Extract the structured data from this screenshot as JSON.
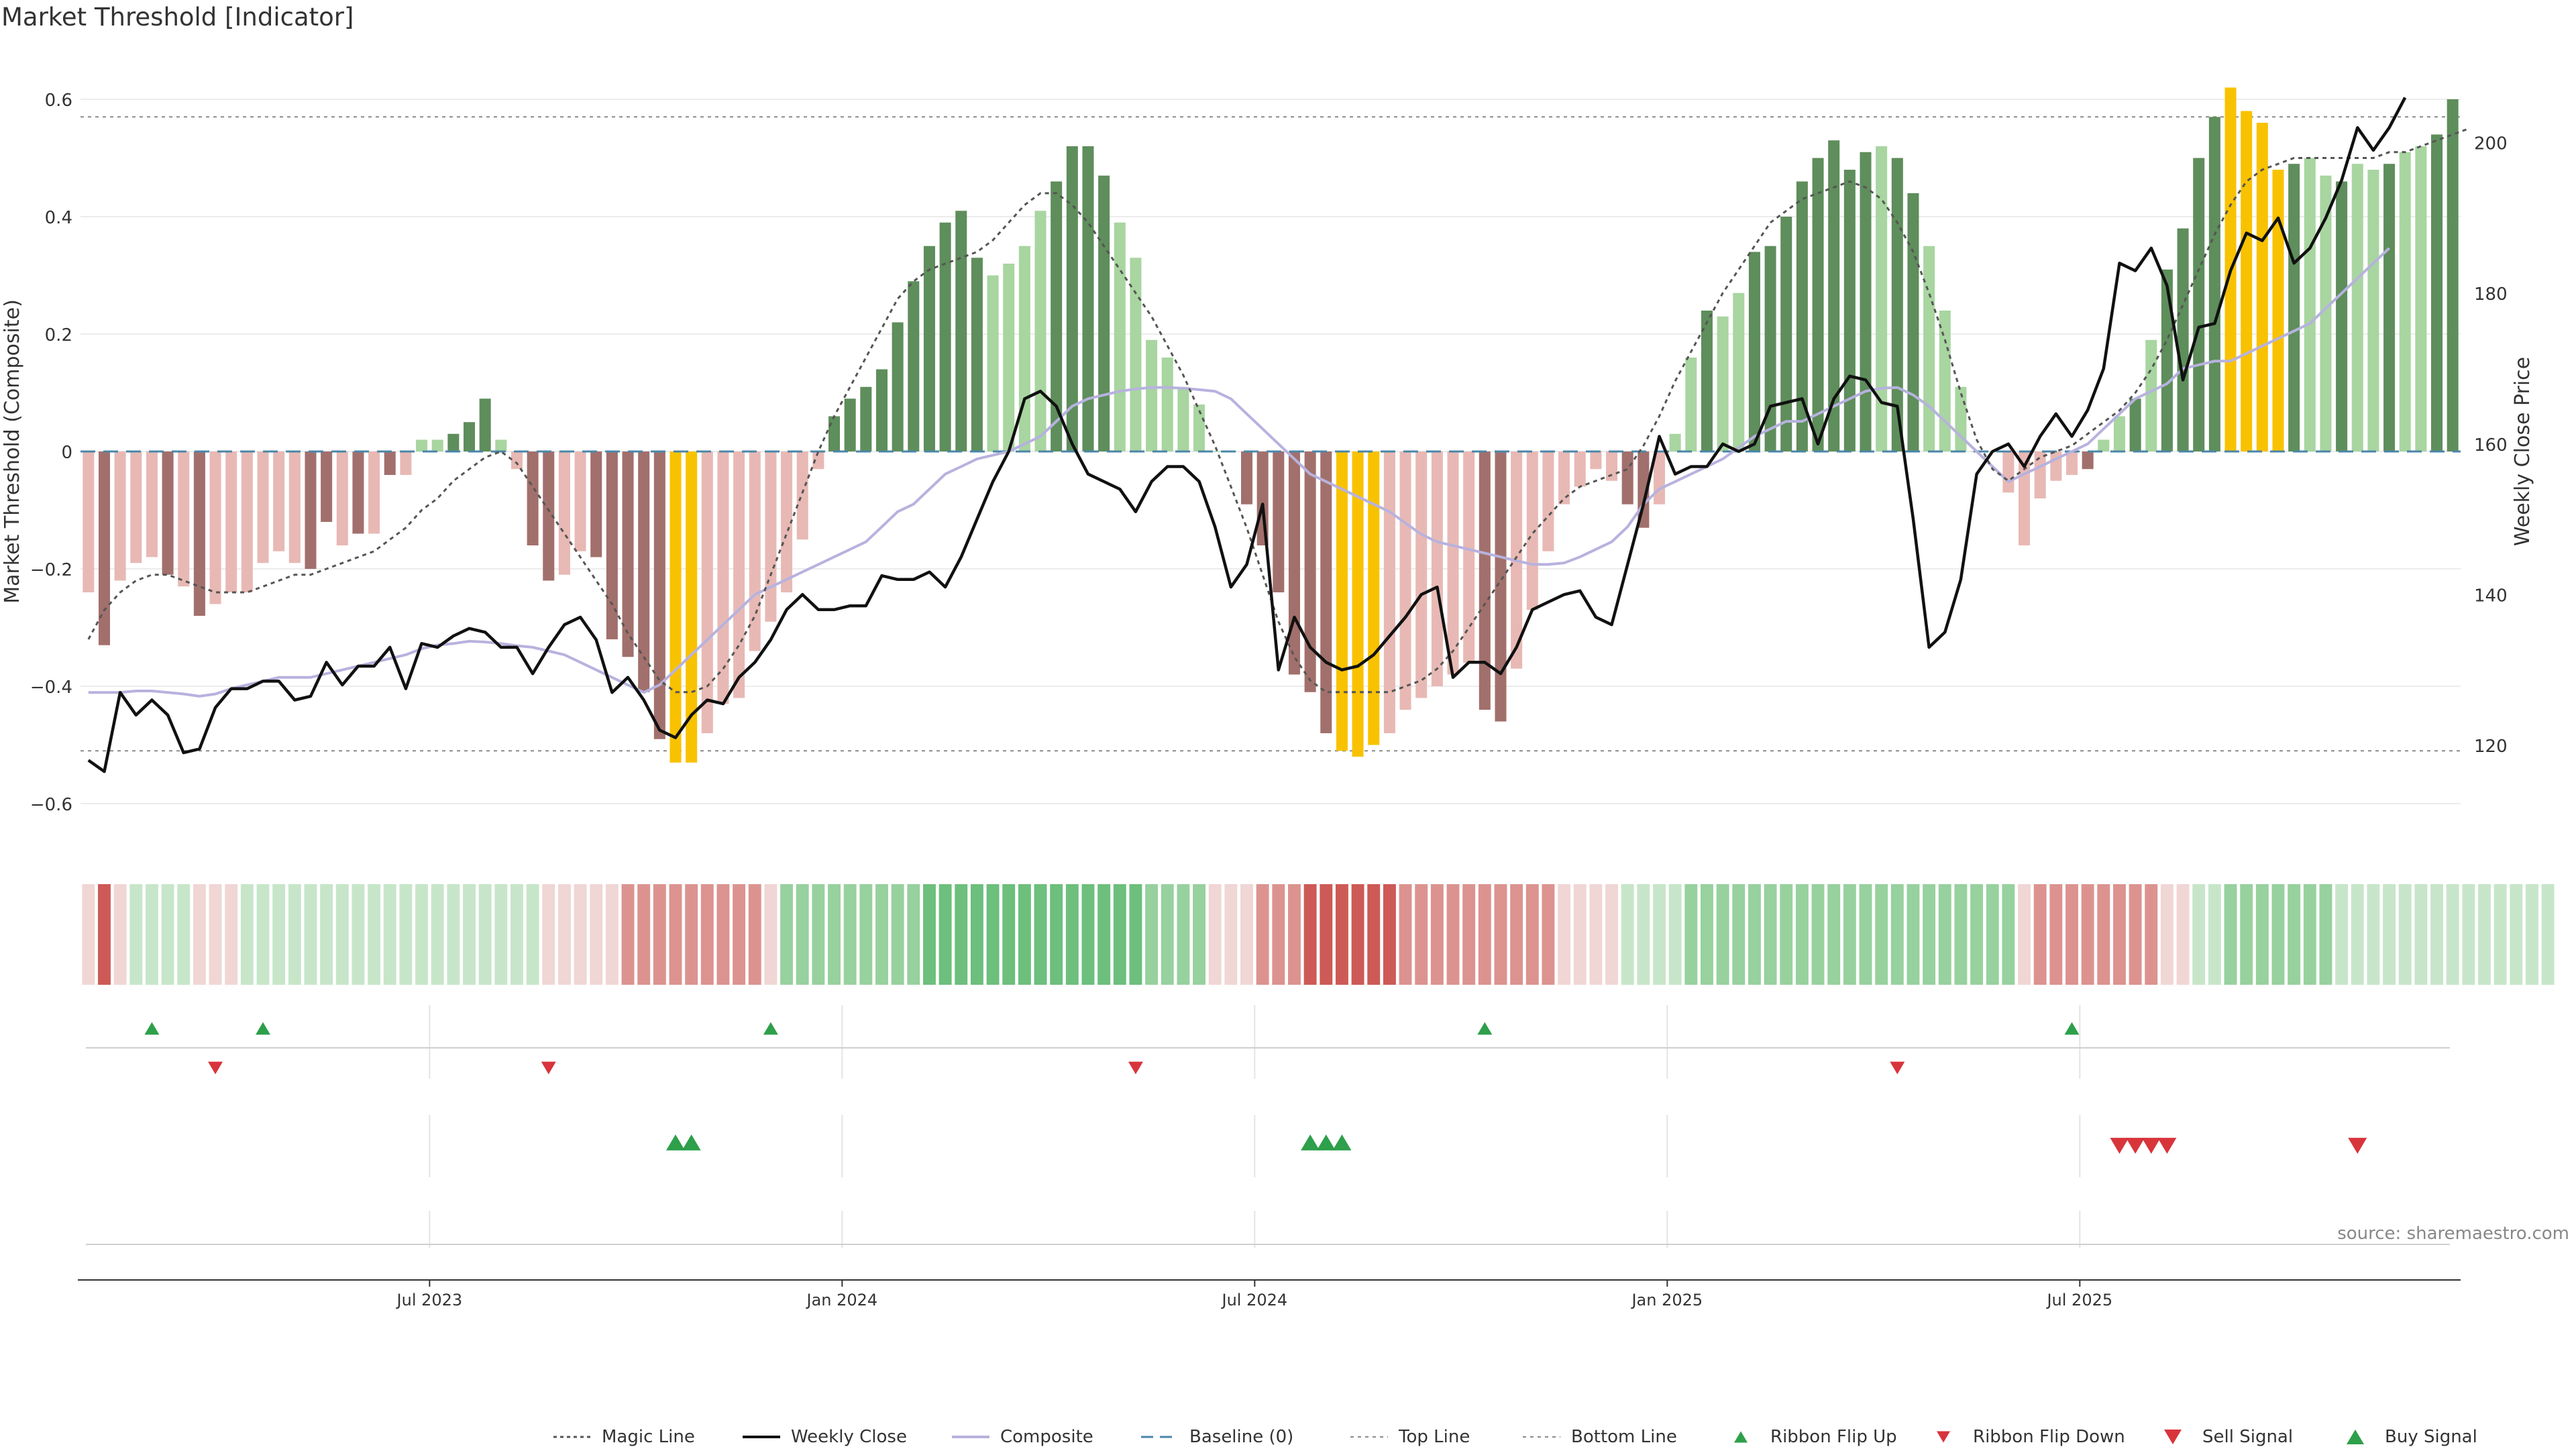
{
  "title": "Market Threshold [Indicator]",
  "source": "source: sharemaestro.com",
  "chart_data": {
    "type": "bar",
    "title": "Market Threshold [Indicator]",
    "ylabel_left": "Market Threshold (Composite)",
    "ylabel_right": "Weekly Close Price",
    "ylim_left": [
      -0.68,
      0.68
    ],
    "ylim_right": [
      106,
      212
    ],
    "left_ticks": [
      "0.6",
      "0.4",
      "0.2",
      "0",
      "−0.2",
      "−0.4",
      "−0.6"
    ],
    "left_tick_values": [
      0.6,
      0.4,
      0.2,
      0,
      -0.2,
      -0.4,
      -0.6
    ],
    "right_ticks": [
      "200",
      "180",
      "160",
      "140",
      "120"
    ],
    "right_tick_values": [
      200,
      180,
      160,
      140,
      120
    ],
    "x_labels": [
      "Jul 2023",
      "Jan 2024",
      "Jul 2024",
      "Jan 2025",
      "Jul 2025"
    ],
    "x_label_weeks": [
      22,
      48,
      74,
      100,
      126
    ],
    "top_line": 0.57,
    "bottom_line": -0.51,
    "composite": [
      -0.24,
      -0.33,
      -0.22,
      -0.19,
      -0.18,
      -0.21,
      -0.23,
      -0.28,
      -0.26,
      -0.24,
      -0.24,
      -0.19,
      -0.17,
      -0.19,
      -0.2,
      -0.12,
      -0.16,
      -0.14,
      -0.14,
      -0.04,
      -0.04,
      0.02,
      0.02,
      0.03,
      0.05,
      0.09,
      0.02,
      -0.03,
      -0.16,
      -0.22,
      -0.21,
      -0.17,
      -0.18,
      -0.32,
      -0.35,
      -0.41,
      -0.49,
      -0.53,
      -0.53,
      -0.48,
      -0.43,
      -0.42,
      -0.34,
      -0.29,
      -0.24,
      -0.15,
      -0.03,
      0.06,
      0.09,
      0.11,
      0.14,
      0.22,
      0.29,
      0.35,
      0.39,
      0.41,
      0.33,
      0.3,
      0.32,
      0.35,
      0.41,
      0.46,
      0.52,
      0.52,
      0.47,
      0.39,
      0.33,
      0.19,
      0.16,
      0.11,
      0.08,
      0.0,
      0.0,
      -0.09,
      -0.16,
      -0.24,
      -0.38,
      -0.41,
      -0.48,
      -0.51,
      -0.52,
      -0.5,
      -0.48,
      -0.44,
      -0.42,
      -0.4,
      -0.38,
      -0.36,
      -0.44,
      -0.46,
      -0.37,
      -0.27,
      -0.17,
      -0.09,
      -0.06,
      -0.03,
      -0.05,
      -0.09,
      -0.13,
      -0.09,
      0.03,
      0.16,
      0.24,
      0.23,
      0.27,
      0.34,
      0.35,
      0.4,
      0.46,
      0.5,
      0.53,
      0.48,
      0.51,
      0.52,
      0.5,
      0.44,
      0.35,
      0.24,
      0.11,
      0.0,
      0.0,
      -0.07,
      -0.16,
      -0.08,
      -0.05,
      -0.04,
      -0.03,
      0.02,
      0.06,
      0.09,
      0.19,
      0.31,
      0.38,
      0.5,
      0.57,
      0.62,
      0.58,
      0.56,
      0.48,
      0.49,
      0.5,
      0.47,
      0.46,
      0.49,
      0.48,
      0.49,
      0.51,
      0.52,
      0.54,
      0.6
    ],
    "magic_line": [
      -0.32,
      -0.27,
      -0.24,
      -0.22,
      -0.21,
      -0.21,
      -0.22,
      -0.23,
      -0.24,
      -0.24,
      -0.24,
      -0.23,
      -0.22,
      -0.21,
      -0.21,
      -0.2,
      -0.19,
      -0.18,
      -0.17,
      -0.15,
      -0.13,
      -0.1,
      -0.08,
      -0.05,
      -0.03,
      -0.01,
      0.0,
      -0.02,
      -0.06,
      -0.1,
      -0.14,
      -0.18,
      -0.22,
      -0.26,
      -0.31,
      -0.35,
      -0.39,
      -0.41,
      -0.41,
      -0.4,
      -0.37,
      -0.33,
      -0.28,
      -0.21,
      -0.14,
      -0.07,
      0.0,
      0.06,
      0.11,
      0.16,
      0.21,
      0.26,
      0.29,
      0.31,
      0.32,
      0.33,
      0.34,
      0.36,
      0.39,
      0.42,
      0.44,
      0.44,
      0.42,
      0.39,
      0.35,
      0.31,
      0.27,
      0.23,
      0.18,
      0.13,
      0.07,
      0.01,
      -0.06,
      -0.13,
      -0.21,
      -0.29,
      -0.35,
      -0.39,
      -0.41,
      -0.41,
      -0.41,
      -0.41,
      -0.41,
      -0.4,
      -0.39,
      -0.37,
      -0.34,
      -0.3,
      -0.26,
      -0.22,
      -0.18,
      -0.14,
      -0.11,
      -0.08,
      -0.06,
      -0.05,
      -0.04,
      -0.03,
      0.01,
      0.06,
      0.12,
      0.17,
      0.22,
      0.27,
      0.31,
      0.35,
      0.39,
      0.41,
      0.43,
      0.44,
      0.45,
      0.46,
      0.45,
      0.43,
      0.39,
      0.34,
      0.27,
      0.19,
      0.1,
      0.02,
      -0.03,
      -0.05,
      -0.03,
      -0.01,
      0.0,
      0.01,
      0.03,
      0.05,
      0.07,
      0.1,
      0.14,
      0.19,
      0.25,
      0.31,
      0.37,
      0.42,
      0.46,
      0.48,
      0.49,
      0.5,
      0.5,
      0.5,
      0.5,
      0.5,
      0.5,
      0.51,
      0.51,
      0.52,
      0.53,
      0.54,
      0.55
    ],
    "composite_price_line": [
      127,
      127,
      127,
      127.2,
      127.2,
      127,
      126.8,
      126.5,
      126.8,
      127.5,
      128,
      128.5,
      129,
      129,
      129,
      129.5,
      130,
      130.5,
      131,
      131.5,
      132,
      132.8,
      133.3,
      133.5,
      133.8,
      133.7,
      133.5,
      133.2,
      133,
      132.5,
      132,
      131,
      130,
      129,
      128,
      127,
      128,
      130,
      132,
      134,
      136,
      138,
      140,
      141,
      142,
      143,
      144,
      145,
      146,
      147,
      149,
      151,
      152,
      154,
      156,
      157,
      158,
      158.5,
      159,
      160,
      161,
      163,
      165,
      166,
      166.5,
      167,
      167.3,
      167.5,
      167.5,
      167.4,
      167.2,
      167,
      166,
      164,
      162,
      160,
      158,
      156,
      155,
      154,
      153,
      152,
      151,
      149.5,
      148,
      147,
      146.5,
      146,
      145.5,
      145,
      144.5,
      144,
      144,
      144.2,
      145,
      146,
      147,
      149,
      152,
      154,
      155,
      156,
      157,
      158,
      159.5,
      161,
      162,
      163,
      163,
      164,
      165,
      166,
      167,
      167.4,
      167.5,
      166.5,
      165,
      163,
      161,
      159,
      157,
      155,
      156,
      157,
      158,
      159,
      160,
      162,
      164,
      166,
      167,
      168,
      170,
      170.5,
      171,
      171,
      172,
      173,
      174,
      175,
      176,
      178,
      180,
      182,
      184,
      186
    ],
    "weekly_close": [
      118,
      116.5,
      127,
      124,
      126,
      124,
      119,
      119.5,
      125,
      127.5,
      127.5,
      128.5,
      128.5,
      126,
      126.5,
      131,
      128,
      130.5,
      130.5,
      133,
      127.5,
      133.5,
      133,
      134.5,
      135.5,
      135,
      133,
      133,
      129.5,
      133,
      136,
      137,
      134,
      127,
      129,
      126,
      122,
      121,
      124,
      126,
      125.5,
      129,
      131,
      134,
      138,
      140,
      138,
      138,
      138.5,
      138.5,
      142.5,
      142,
      142,
      143,
      141,
      145,
      150,
      155,
      159,
      166,
      167,
      165,
      160,
      156,
      155,
      154,
      151,
      155,
      157,
      157,
      155,
      149,
      141,
      144,
      152,
      130,
      137,
      133,
      131,
      130,
      130.5,
      132,
      134.5,
      137,
      140,
      141,
      129,
      131,
      131,
      129.5,
      133,
      138,
      139,
      140,
      140.5,
      137,
      136,
      144,
      152,
      161,
      156,
      157,
      157,
      160,
      159,
      160,
      165,
      165.5,
      166,
      160,
      166,
      169,
      168.5,
      165.5,
      165,
      150,
      133,
      135,
      142,
      156,
      159,
      160,
      157,
      161,
      164,
      161,
      164.5,
      170,
      184,
      183,
      186,
      181,
      168.5,
      175.5,
      176,
      183,
      188,
      187,
      190,
      184,
      186,
      190,
      195,
      202,
      199,
      202,
      206
    ],
    "bar_color_codes": [
      "l",
      "d",
      "l",
      "l",
      "l",
      "d",
      "l",
      "d",
      "l",
      "l",
      "l",
      "l",
      "l",
      "l",
      "d",
      "d",
      "l",
      "d",
      "l",
      "d",
      "l",
      "l",
      "l",
      "d",
      "d",
      "d",
      "l",
      "l",
      "d",
      "d",
      "l",
      "l",
      "d",
      "d",
      "d",
      "d",
      "d",
      "y",
      "y",
      "l",
      "l",
      "l",
      "l",
      "l",
      "l",
      "l",
      "l",
      "d",
      "d",
      "d",
      "d",
      "d",
      "d",
      "d",
      "d",
      "d",
      "d",
      "l",
      "l",
      "l",
      "l",
      "d",
      "d",
      "d",
      "d",
      "l",
      "l",
      "l",
      "l",
      "l",
      "l",
      "l",
      "l",
      "d",
      "d",
      "d",
      "d",
      "d",
      "d",
      "y",
      "y",
      "y",
      "l",
      "l",
      "l",
      "l",
      "l",
      "l",
      "d",
      "d",
      "l",
      "l",
      "l",
      "l",
      "l",
      "l",
      "l",
      "d",
      "d",
      "l",
      "l",
      "l",
      "d",
      "l",
      "l",
      "d",
      "d",
      "d",
      "d",
      "d",
      "d",
      "d",
      "d",
      "l",
      "d",
      "d",
      "l",
      "l",
      "l",
      "l",
      "l",
      "l",
      "l",
      "l",
      "l",
      "l",
      "d",
      "l",
      "l",
      "d",
      "l",
      "d",
      "d",
      "d",
      "d",
      "y",
      "y",
      "y",
      "y",
      "d",
      "l",
      "l",
      "d",
      "l",
      "l",
      "d",
      "l",
      "l",
      "d",
      "d",
      "d",
      "y"
    ],
    "ribbon": [
      -1,
      -3,
      -1,
      1,
      1,
      1,
      1,
      -1,
      -1,
      -1,
      1,
      1,
      1,
      1,
      1,
      1,
      1,
      1,
      1,
      1,
      1,
      1,
      1,
      1,
      1,
      1,
      1,
      1,
      1,
      -1,
      -1,
      -1,
      -1,
      -1,
      -2,
      -2,
      -2,
      -2,
      -2,
      -2,
      -2,
      -2,
      -2,
      -1,
      2,
      2,
      2,
      2,
      2,
      2,
      2,
      2,
      2,
      3,
      3,
      3,
      3,
      3,
      3,
      3,
      3,
      3,
      3,
      3,
      3,
      3,
      3,
      2,
      2,
      2,
      2,
      -1,
      -1,
      -1,
      -2,
      -2,
      -2,
      -3,
      -3,
      -3,
      -3,
      -3,
      -3,
      -2,
      -2,
      -2,
      -2,
      -2,
      -2,
      -2,
      -2,
      -2,
      -2,
      -1,
      -1,
      -1,
      -1,
      1,
      1,
      1,
      1,
      2,
      2,
      2,
      2,
      2,
      2,
      2,
      2,
      2,
      2,
      2,
      2,
      2,
      2,
      2,
      2,
      2,
      2,
      2,
      2,
      2,
      -1,
      -2,
      -2,
      -2,
      -2,
      -2,
      -2,
      -2,
      -2,
      -1,
      -1,
      1,
      1,
      2,
      2,
      2,
      2,
      2,
      2,
      2,
      1,
      1,
      1,
      1,
      1,
      1,
      1,
      1,
      1,
      1,
      1,
      1,
      1,
      1
    ],
    "ribbon_flip_up_weeks": [
      4,
      11,
      43,
      88,
      125
    ],
    "ribbon_flip_down_weeks": [
      8,
      29,
      66,
      114
    ],
    "buy_signal_weeks": [
      37,
      38,
      77,
      78,
      79
    ],
    "sell_signal_weeks": [
      128,
      129,
      130,
      131,
      143
    ],
    "colors": {
      "bar_dark_green": "#5e8e5b",
      "bar_light_green": "#a8d5a0",
      "bar_dark_red": "#a2706c",
      "bar_light_red": "#e8b9b4",
      "bar_yellow": "#f8c200",
      "weekly_close": "#111111",
      "composite": "#b7b2de",
      "magic_line": "#555555",
      "baseline": "#4a86a8",
      "buy": "#2e9f4a",
      "sell": "#d8343c"
    },
    "legend": [
      "Magic Line",
      "Weekly Close",
      "Composite",
      "Baseline (0)",
      "Top Line",
      "Bottom Line",
      "Ribbon Flip Up",
      "Ribbon Flip Down",
      "Sell Signal",
      "Buy Signal"
    ],
    "legend_placement": "bottom-center",
    "grid": true
  }
}
